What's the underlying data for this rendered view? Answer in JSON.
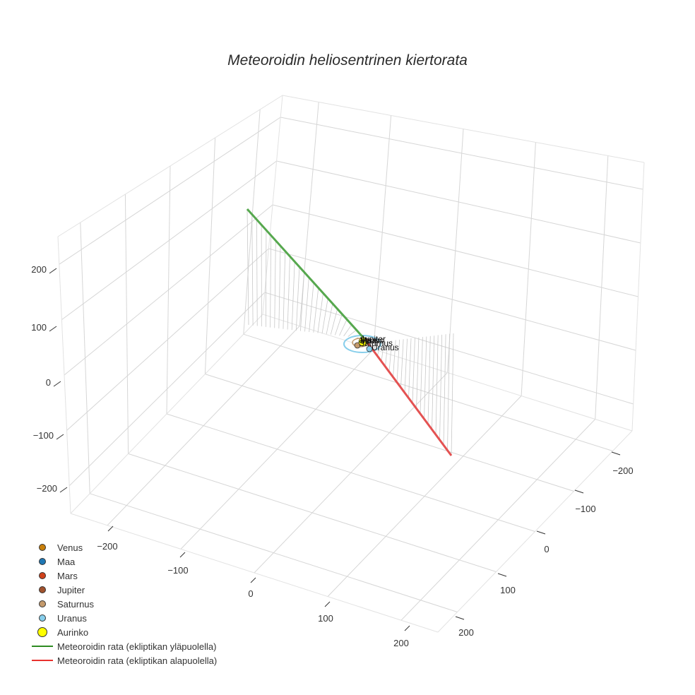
{
  "title": "Meteoroidin heliosentrinen kiertorata",
  "axes": {
    "x": {
      "ticks": [
        "−200",
        "−100",
        "0",
        "100",
        "200"
      ]
    },
    "y": {
      "ticks": [
        "−200",
        "−100",
        "0",
        "100",
        "200"
      ]
    },
    "z": {
      "ticks": [
        "200",
        "100",
        "0",
        "−100",
        "−200"
      ]
    }
  },
  "legend": [
    {
      "name": "Venus",
      "type": "marker",
      "color": "#c87f0a",
      "size": 10
    },
    {
      "name": "Maa",
      "type": "marker",
      "color": "#1f77b4",
      "size": 10
    },
    {
      "name": "Mars",
      "type": "marker",
      "color": "#d0421b",
      "size": 10
    },
    {
      "name": "Jupiter",
      "type": "marker",
      "color": "#a0522d",
      "size": 10
    },
    {
      "name": "Saturnus",
      "type": "marker",
      "color": "#c49a6c",
      "size": 10
    },
    {
      "name": "Uranus",
      "type": "marker",
      "color": "#87ceeb",
      "size": 10
    },
    {
      "name": "Aurinko",
      "type": "marker",
      "color": "#ffff00",
      "size": 14
    },
    {
      "name": "Meteoroidin rata (ekliptikan yläpuolella)",
      "type": "line",
      "color": "#2e8b22"
    },
    {
      "name": "Meteoroidin rata (ekliptikan alapuolella)",
      "type": "line",
      "color": "#e8322e"
    }
  ],
  "planet_labels": [
    "Venus",
    "Maa",
    "Mars",
    "Jupiter",
    "Saturnus",
    "Uranus"
  ],
  "chart_data": {
    "type": "scatter3d",
    "title": "Meteoroidin heliosentrinen kiertorata",
    "axis_ranges": {
      "x": [
        -250,
        250
      ],
      "y": [
        -250,
        250
      ],
      "z": [
        -250,
        250
      ]
    },
    "tick_values": [
      -200,
      -100,
      0,
      100,
      200
    ],
    "grid": true,
    "legend_position": "bottom-left",
    "series": [
      {
        "name": "Aurinko",
        "type": "marker",
        "x": [
          0
        ],
        "y": [
          0
        ],
        "z": [
          0
        ],
        "color": "#ffff00"
      },
      {
        "name": "Venus",
        "type": "marker",
        "approx_position": [
          0.7,
          0,
          0
        ],
        "color": "#c87f0a"
      },
      {
        "name": "Maa",
        "type": "marker",
        "approx_position": [
          1,
          0,
          0
        ],
        "color": "#1f77b4"
      },
      {
        "name": "Mars",
        "type": "marker",
        "approx_position": [
          1.5,
          0,
          0
        ],
        "color": "#d0421b"
      },
      {
        "name": "Jupiter",
        "type": "marker",
        "approx_position": [
          5,
          0,
          0
        ],
        "color": "#a0522d"
      },
      {
        "name": "Saturnus",
        "type": "marker",
        "approx_position": [
          -9,
          3,
          0
        ],
        "color": "#c49a6c"
      },
      {
        "name": "Uranus",
        "type": "marker",
        "approx_position": [
          15,
          12,
          0
        ],
        "color": "#87ceeb"
      },
      {
        "name": "Meteoroidin rata (ekliptikan yläpuolella)",
        "type": "line",
        "color": "#2e8b22",
        "start_approx": [
          -230,
          -40,
          190
        ],
        "end_approx": [
          0,
          0,
          0
        ]
      },
      {
        "name": "Meteoroidin rata (ekliptikan alapuolella)",
        "type": "line",
        "color": "#e8322e",
        "start_approx": [
          0,
          0,
          0
        ],
        "end_approx": [
          230,
          -200,
          -190
        ]
      }
    ]
  }
}
